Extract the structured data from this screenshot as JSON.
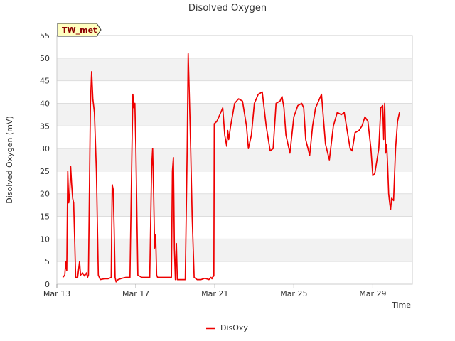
{
  "chart_data": {
    "type": "line",
    "title": "Disolved Oxygen",
    "xlabel": "Time",
    "ylabel": "Disolved Oxygen (mV)",
    "badge": "TW_met",
    "ylim": [
      0,
      55
    ],
    "yticks": [
      0,
      5,
      10,
      15,
      20,
      25,
      30,
      35,
      40,
      45,
      50,
      55
    ],
    "xlim": [
      0,
      18
    ],
    "xticks": [
      {
        "value": 0,
        "label": "Mar 13"
      },
      {
        "value": 4,
        "label": "Mar 17"
      },
      {
        "value": 8,
        "label": "Mar 21"
      },
      {
        "value": 12,
        "label": "Mar 25"
      },
      {
        "value": 16,
        "label": "Mar 29"
      }
    ],
    "grid": true,
    "legend_position": "bottom-center",
    "colors": {
      "series": "#ee0000",
      "band": "#f2f2f2",
      "grid": "#dddddd",
      "badge_bg": "#ffffc0"
    },
    "series": [
      {
        "name": "DisOxy",
        "points": [
          [
            0.3,
            1.5
          ],
          [
            0.4,
            2.0
          ],
          [
            0.45,
            5.0
          ],
          [
            0.5,
            3.0
          ],
          [
            0.55,
            25.0
          ],
          [
            0.6,
            18.0
          ],
          [
            0.65,
            20.0
          ],
          [
            0.7,
            26.0
          ],
          [
            0.75,
            22.0
          ],
          [
            0.8,
            19.0
          ],
          [
            0.85,
            18.0
          ],
          [
            0.9,
            10.0
          ],
          [
            0.95,
            1.5
          ],
          [
            1.05,
            1.5
          ],
          [
            1.15,
            5.0
          ],
          [
            1.2,
            2.0
          ],
          [
            1.3,
            2.5
          ],
          [
            1.4,
            1.8
          ],
          [
            1.5,
            2.5
          ],
          [
            1.55,
            1.5
          ],
          [
            1.6,
            2.0
          ],
          [
            1.7,
            40.0
          ],
          [
            1.76,
            47.0
          ],
          [
            1.82,
            41.0
          ],
          [
            1.9,
            38.0
          ],
          [
            2.0,
            25.0
          ],
          [
            2.1,
            2.0
          ],
          [
            2.2,
            1.0
          ],
          [
            2.4,
            1.2
          ],
          [
            2.6,
            1.2
          ],
          [
            2.75,
            1.5
          ],
          [
            2.8,
            22.0
          ],
          [
            2.85,
            21.0
          ],
          [
            2.9,
            12.0
          ],
          [
            2.95,
            1.5
          ],
          [
            3.0,
            0.5
          ],
          [
            3.1,
            1.0
          ],
          [
            3.3,
            1.3
          ],
          [
            3.5,
            1.5
          ],
          [
            3.7,
            1.5
          ],
          [
            3.8,
            30.0
          ],
          [
            3.85,
            42.0
          ],
          [
            3.9,
            39.0
          ],
          [
            3.95,
            40.0
          ],
          [
            4.0,
            30.0
          ],
          [
            4.1,
            2.0
          ],
          [
            4.3,
            1.5
          ],
          [
            4.5,
            1.5
          ],
          [
            4.7,
            1.5
          ],
          [
            4.8,
            26.0
          ],
          [
            4.85,
            30.0
          ],
          [
            4.9,
            20.0
          ],
          [
            4.95,
            8.0
          ],
          [
            5.0,
            11.0
          ],
          [
            5.05,
            2.0
          ],
          [
            5.1,
            1.5
          ],
          [
            5.3,
            1.5
          ],
          [
            5.6,
            1.5
          ],
          [
            5.8,
            1.5
          ],
          [
            5.85,
            25.0
          ],
          [
            5.9,
            28.0
          ],
          [
            5.95,
            8.0
          ],
          [
            6.0,
            1.0
          ],
          [
            6.05,
            9.0
          ],
          [
            6.1,
            1.0
          ],
          [
            6.3,
            1.0
          ],
          [
            6.5,
            1.0
          ],
          [
            6.6,
            30.0
          ],
          [
            6.65,
            51.0
          ],
          [
            6.75,
            35.0
          ],
          [
            6.85,
            15.0
          ],
          [
            6.95,
            1.5
          ],
          [
            7.1,
            1.0
          ],
          [
            7.3,
            1.0
          ],
          [
            7.5,
            1.3
          ],
          [
            7.7,
            1.0
          ],
          [
            7.8,
            1.5
          ],
          [
            7.85,
            1.2
          ],
          [
            7.9,
            1.6
          ],
          [
            7.95,
            1.8
          ],
          [
            7.97,
            35.5
          ],
          [
            8.1,
            36.0
          ],
          [
            8.3,
            38.0
          ],
          [
            8.4,
            39.0
          ],
          [
            8.5,
            33.0
          ],
          [
            8.6,
            30.5
          ],
          [
            8.65,
            34.0
          ],
          [
            8.7,
            32.0
          ],
          [
            8.8,
            35.0
          ],
          [
            9.0,
            40.0
          ],
          [
            9.2,
            41.0
          ],
          [
            9.4,
            40.5
          ],
          [
            9.6,
            35.0
          ],
          [
            9.7,
            30.0
          ],
          [
            9.85,
            33.0
          ],
          [
            10.0,
            40.0
          ],
          [
            10.2,
            42.0
          ],
          [
            10.4,
            42.5
          ],
          [
            10.6,
            35.0
          ],
          [
            10.8,
            29.5
          ],
          [
            10.95,
            30.0
          ],
          [
            11.1,
            40.0
          ],
          [
            11.3,
            40.5
          ],
          [
            11.4,
            41.5
          ],
          [
            11.5,
            39.0
          ],
          [
            11.6,
            33.0
          ],
          [
            11.8,
            29.0
          ],
          [
            12.0,
            37.0
          ],
          [
            12.2,
            39.5
          ],
          [
            12.4,
            40.0
          ],
          [
            12.5,
            39.0
          ],
          [
            12.6,
            32.0
          ],
          [
            12.8,
            28.5
          ],
          [
            12.95,
            35.0
          ],
          [
            13.1,
            39.0
          ],
          [
            13.25,
            40.5
          ],
          [
            13.4,
            42.0
          ],
          [
            13.6,
            31.0
          ],
          [
            13.8,
            27.5
          ],
          [
            14.0,
            35.0
          ],
          [
            14.2,
            38.0
          ],
          [
            14.4,
            37.5
          ],
          [
            14.55,
            38.0
          ],
          [
            14.7,
            34.0
          ],
          [
            14.85,
            30.0
          ],
          [
            14.95,
            29.5
          ],
          [
            15.1,
            33.5
          ],
          [
            15.3,
            34.0
          ],
          [
            15.45,
            35.0
          ],
          [
            15.6,
            37.0
          ],
          [
            15.75,
            36.0
          ],
          [
            15.9,
            30.0
          ],
          [
            16.0,
            24.0
          ],
          [
            16.1,
            24.5
          ],
          [
            16.3,
            30.0
          ],
          [
            16.4,
            39.0
          ],
          [
            16.5,
            39.5
          ],
          [
            16.55,
            32.0
          ],
          [
            16.6,
            40.0
          ],
          [
            16.65,
            29.0
          ],
          [
            16.7,
            31.0
          ],
          [
            16.75,
            26.0
          ],
          [
            16.8,
            20.0
          ],
          [
            16.85,
            18.0
          ],
          [
            16.9,
            16.5
          ],
          [
            16.95,
            19.0
          ],
          [
            17.05,
            18.5
          ],
          [
            17.15,
            30.0
          ],
          [
            17.25,
            36.0
          ],
          [
            17.35,
            38.0
          ]
        ]
      }
    ]
  }
}
